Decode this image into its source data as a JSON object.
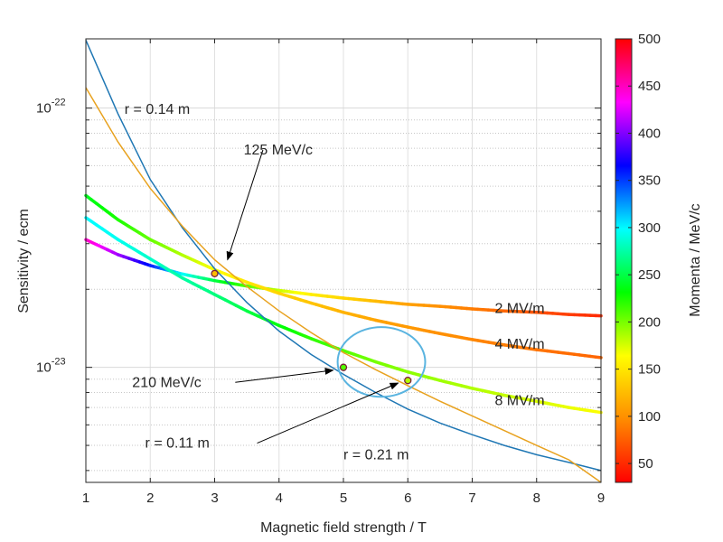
{
  "chart_data": {
    "type": "line",
    "title": "",
    "xlabel": "Magnetic field strength / T",
    "ylabel": "Sensitivity / ecm",
    "xlim": [
      1,
      9
    ],
    "ylim": [
      3.6e-24,
      1.85e-22
    ],
    "y_scale": "log",
    "grid": true,
    "x_ticks": [
      "1",
      "2",
      "3",
      "4",
      "5",
      "6",
      "7",
      "8",
      "9"
    ],
    "y_tick_labels": [
      {
        "value": 1e-23,
        "base": "10",
        "exp": "-23"
      },
      {
        "value": 1e-22,
        "base": "10",
        "exp": "-22"
      }
    ],
    "series": [
      {
        "name": "2 MV/m",
        "colored_by": "momentum",
        "x": [
          1,
          1.5,
          2,
          2.5,
          3,
          3.5,
          4,
          4.5,
          5,
          5.5,
          6,
          6.5,
          7,
          7.5,
          8,
          8.5,
          9
        ],
        "y": [
          3.11e-23,
          2.72e-23,
          2.47e-23,
          2.29e-23,
          2.16e-23,
          2.06e-23,
          1.98e-23,
          1.91e-23,
          1.85e-23,
          1.8e-23,
          1.75e-23,
          1.72e-23,
          1.68e-23,
          1.65e-23,
          1.63e-23,
          1.6e-23,
          1.58e-23
        ],
        "momenta": [
          450,
          410,
          360,
          300,
          250,
          210,
          180,
          155,
          140,
          125,
          110,
          100,
          90,
          80,
          70,
          60,
          50
        ]
      },
      {
        "name": "4 MV/m",
        "colored_by": "momentum",
        "x": [
          1,
          1.5,
          2,
          2.5,
          3,
          3.5,
          4,
          4.5,
          5,
          5.5,
          6,
          6.5,
          7,
          7.5,
          8,
          8.5,
          9
        ],
        "y": [
          4.6e-23,
          3.71e-23,
          3.11e-23,
          2.71e-23,
          2.38e-23,
          2.13e-23,
          1.93e-23,
          1.77e-23,
          1.63e-23,
          1.52e-23,
          1.43e-23,
          1.35e-23,
          1.28e-23,
          1.22e-23,
          1.17e-23,
          1.13e-23,
          1.09e-23
        ],
        "momenta": [
          240,
          225,
          205,
          185,
          165,
          150,
          140,
          130,
          120,
          112,
          105,
          100,
          95,
          90,
          86,
          82,
          78
        ]
      },
      {
        "name": "8 MV/m",
        "colored_by": "momentum",
        "x": [
          1,
          1.5,
          2,
          2.5,
          3,
          3.5,
          4,
          4.5,
          5,
          5.5,
          6,
          6.5,
          7,
          7.5,
          8,
          8.5,
          9
        ],
        "y": [
          3.78e-23,
          3.11e-23,
          2.62e-23,
          2.21e-23,
          1.91e-23,
          1.65e-23,
          1.45e-23,
          1.29e-23,
          1.16e-23,
          1.05e-23,
          9.6e-24,
          8.9e-24,
          8.3e-24,
          7.8e-24,
          7.4e-24,
          7e-24,
          6.7e-24
        ],
        "momenta": [
          300,
          295,
          285,
          275,
          265,
          250,
          235,
          220,
          210,
          200,
          195,
          190,
          185,
          180,
          175,
          170,
          165
        ]
      },
      {
        "name": "r = 0.14 m",
        "color": "#1f77b4",
        "x": [
          1,
          1.5,
          2,
          2.5,
          3,
          3.5,
          4,
          4.5,
          5,
          5.5,
          6,
          6.5,
          7,
          7.5,
          8,
          8.5,
          9
        ],
        "y": [
          1.83e-22,
          9.5e-23,
          5.3e-23,
          3.45e-23,
          2.4e-23,
          1.78e-23,
          1.38e-23,
          1.12e-23,
          9.4e-24,
          8e-24,
          6.9e-24,
          6.1e-24,
          5.5e-24,
          5e-24,
          4.6e-24,
          4.3e-24,
          4e-24
        ]
      },
      {
        "name": "r = 0.21 m",
        "color": "#e8a21f",
        "x": [
          1,
          1.5,
          2,
          2.5,
          3,
          3.5,
          4,
          4.5,
          5,
          5.5,
          6,
          6.5,
          7,
          7.5,
          8,
          8.5,
          9
        ],
        "y": [
          1.2e-22,
          7.4e-23,
          4.9e-23,
          3.5e-23,
          2.6e-23,
          2.05e-23,
          1.65e-23,
          1.36e-23,
          1.14e-23,
          9.8e-24,
          8.5e-24,
          7.4e-24,
          6.5e-24,
          5.7e-24,
          5e-24,
          4.4e-24,
          3.6e-24
        ]
      }
    ],
    "markers": [
      {
        "x": 3,
        "y": 2.3e-23,
        "momentum": 125
      },
      {
        "x": 5,
        "y": 1e-23,
        "momentum": 210
      },
      {
        "x": 6,
        "y": 8.9e-24,
        "momentum": 185
      }
    ],
    "annotations": [
      {
        "text": "r = 0.14 m",
        "at_x": 1.6,
        "at_y": 9.9e-23
      },
      {
        "text": "125 MeV/c",
        "at_x": 3.45,
        "at_y": 6.9e-23
      },
      {
        "text": "2 MV/m",
        "at_x": 7.35,
        "at_y": 1.69e-23
      },
      {
        "text": "4 MV/m",
        "at_x": 7.35,
        "at_y": 1.23e-23
      },
      {
        "text": "8 MV/m",
        "at_x": 7.35,
        "at_y": 7.45e-24
      },
      {
        "text": "210 MeV/c",
        "at_x": 1.72,
        "at_y": 8.75e-24
      },
      {
        "text": "r = 0.11 m",
        "at_x": 1.92,
        "at_y": 5.1e-24
      },
      {
        "text": "r = 0.21 m",
        "at_x": 5.0,
        "at_y": 4.6e-24
      }
    ],
    "arrows": [
      {
        "from_x": 3.75,
        "from_y": 6.9e-23,
        "to_x": 3.2,
        "to_y": 2.6e-23
      },
      {
        "from_x": 3.32,
        "from_y": 8.75e-24,
        "to_x": 4.84,
        "to_y": 9.75e-24
      },
      {
        "from_x": 3.66,
        "from_y": 5.1e-24,
        "to_x": 5.85,
        "to_y": 8.7e-24
      }
    ],
    "highlight_ellipse": {
      "cx": 5.59,
      "cy": 1.06e-23,
      "rx_data": 0.68,
      "y_top": 1.43e-23,
      "y_bottom": 7.7e-24,
      "color": "#5ab4e0"
    },
    "colorbar": {
      "label": "Momenta  / MeV/c",
      "min": 30,
      "max": 500,
      "ticks": [
        "50",
        "100",
        "150",
        "200",
        "250",
        "300",
        "350",
        "400",
        "450",
        "500"
      ],
      "tick_values": [
        50,
        100,
        150,
        200,
        250,
        300,
        350,
        400,
        450,
        500
      ],
      "colormap": [
        "#ff0000",
        "#ff8c00",
        "#ffff00",
        "#00ff00",
        "#00ffff",
        "#0000ff",
        "#ff00ff",
        "#ff0000"
      ]
    }
  }
}
